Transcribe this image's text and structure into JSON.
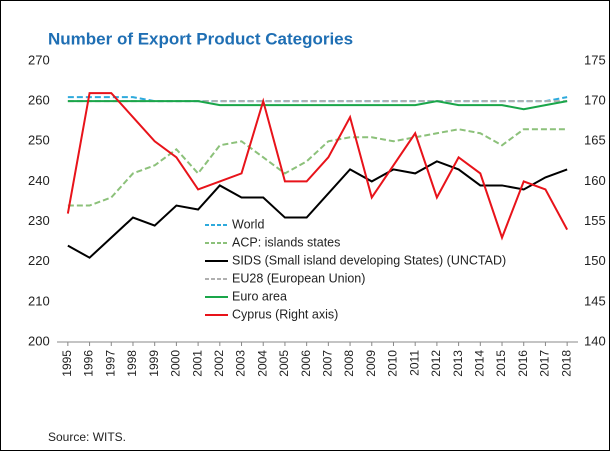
{
  "chart_data": {
    "type": "line",
    "title": "Number of Export Product Categories",
    "source": "Source: WITS.",
    "categories": [
      "1995",
      "1996",
      "1997",
      "1998",
      "1999",
      "2000",
      "2001",
      "2002",
      "2003",
      "2004",
      "2005",
      "2006",
      "2007",
      "2008",
      "2009",
      "2010",
      "2011",
      "2012",
      "2013",
      "2014",
      "2015",
      "2016",
      "2017",
      "2018"
    ],
    "ylim": [
      200,
      270
    ],
    "yticks": [
      200,
      210,
      220,
      230,
      240,
      250,
      260,
      270
    ],
    "y2lim": [
      140,
      175
    ],
    "y2ticks": [
      140,
      145,
      150,
      155,
      160,
      165,
      170,
      175
    ],
    "series": [
      {
        "name": "World",
        "color": "#2eaadc",
        "dash": true,
        "values": [
          261,
          261,
          261,
          261,
          260,
          260,
          260,
          260,
          260,
          260,
          260,
          260,
          260,
          260,
          260,
          260,
          260,
          260,
          260,
          260,
          260,
          260,
          260,
          261
        ]
      },
      {
        "name": "ACP: islands states",
        "color": "#8cc17a",
        "dash": true,
        "values": [
          234,
          234,
          236,
          242,
          244,
          248,
          242,
          249,
          250,
          246,
          242,
          245,
          250,
          251,
          251,
          250,
          251,
          252,
          253,
          252,
          249,
          253,
          253,
          253
        ]
      },
      {
        "name": "SIDS (Small island developing States) (UNCTAD)",
        "color": "#000000",
        "values": [
          224,
          221,
          226,
          231,
          229,
          234,
          233,
          239,
          236,
          236,
          231,
          231,
          237,
          243,
          240,
          243,
          242,
          245,
          243,
          239,
          239,
          238,
          241,
          243
        ]
      },
      {
        "name": "EU28 (European Union)",
        "color": "#b0b0b0",
        "dash": true,
        "values": [
          260,
          260,
          260,
          260,
          260,
          260,
          260,
          260,
          260,
          260,
          260,
          260,
          260,
          260,
          260,
          260,
          260,
          260,
          260,
          260,
          260,
          260,
          260,
          260
        ]
      },
      {
        "name": "Euro area",
        "color": "#1aa64a",
        "values": [
          260,
          260,
          260,
          260,
          260,
          260,
          260,
          259,
          259,
          259,
          259,
          259,
          259,
          259,
          259,
          259,
          259,
          260,
          259,
          259,
          259,
          258,
          259,
          260
        ]
      },
      {
        "name": "Cyprus (Right axis)",
        "color": "#e8131a",
        "axis": "y2",
        "values": [
          156,
          171,
          171,
          168,
          165,
          163,
          159,
          160,
          161,
          170,
          160,
          160,
          163,
          168,
          158,
          162,
          166,
          158,
          163,
          161,
          153,
          160,
          159,
          154
        ]
      }
    ]
  }
}
